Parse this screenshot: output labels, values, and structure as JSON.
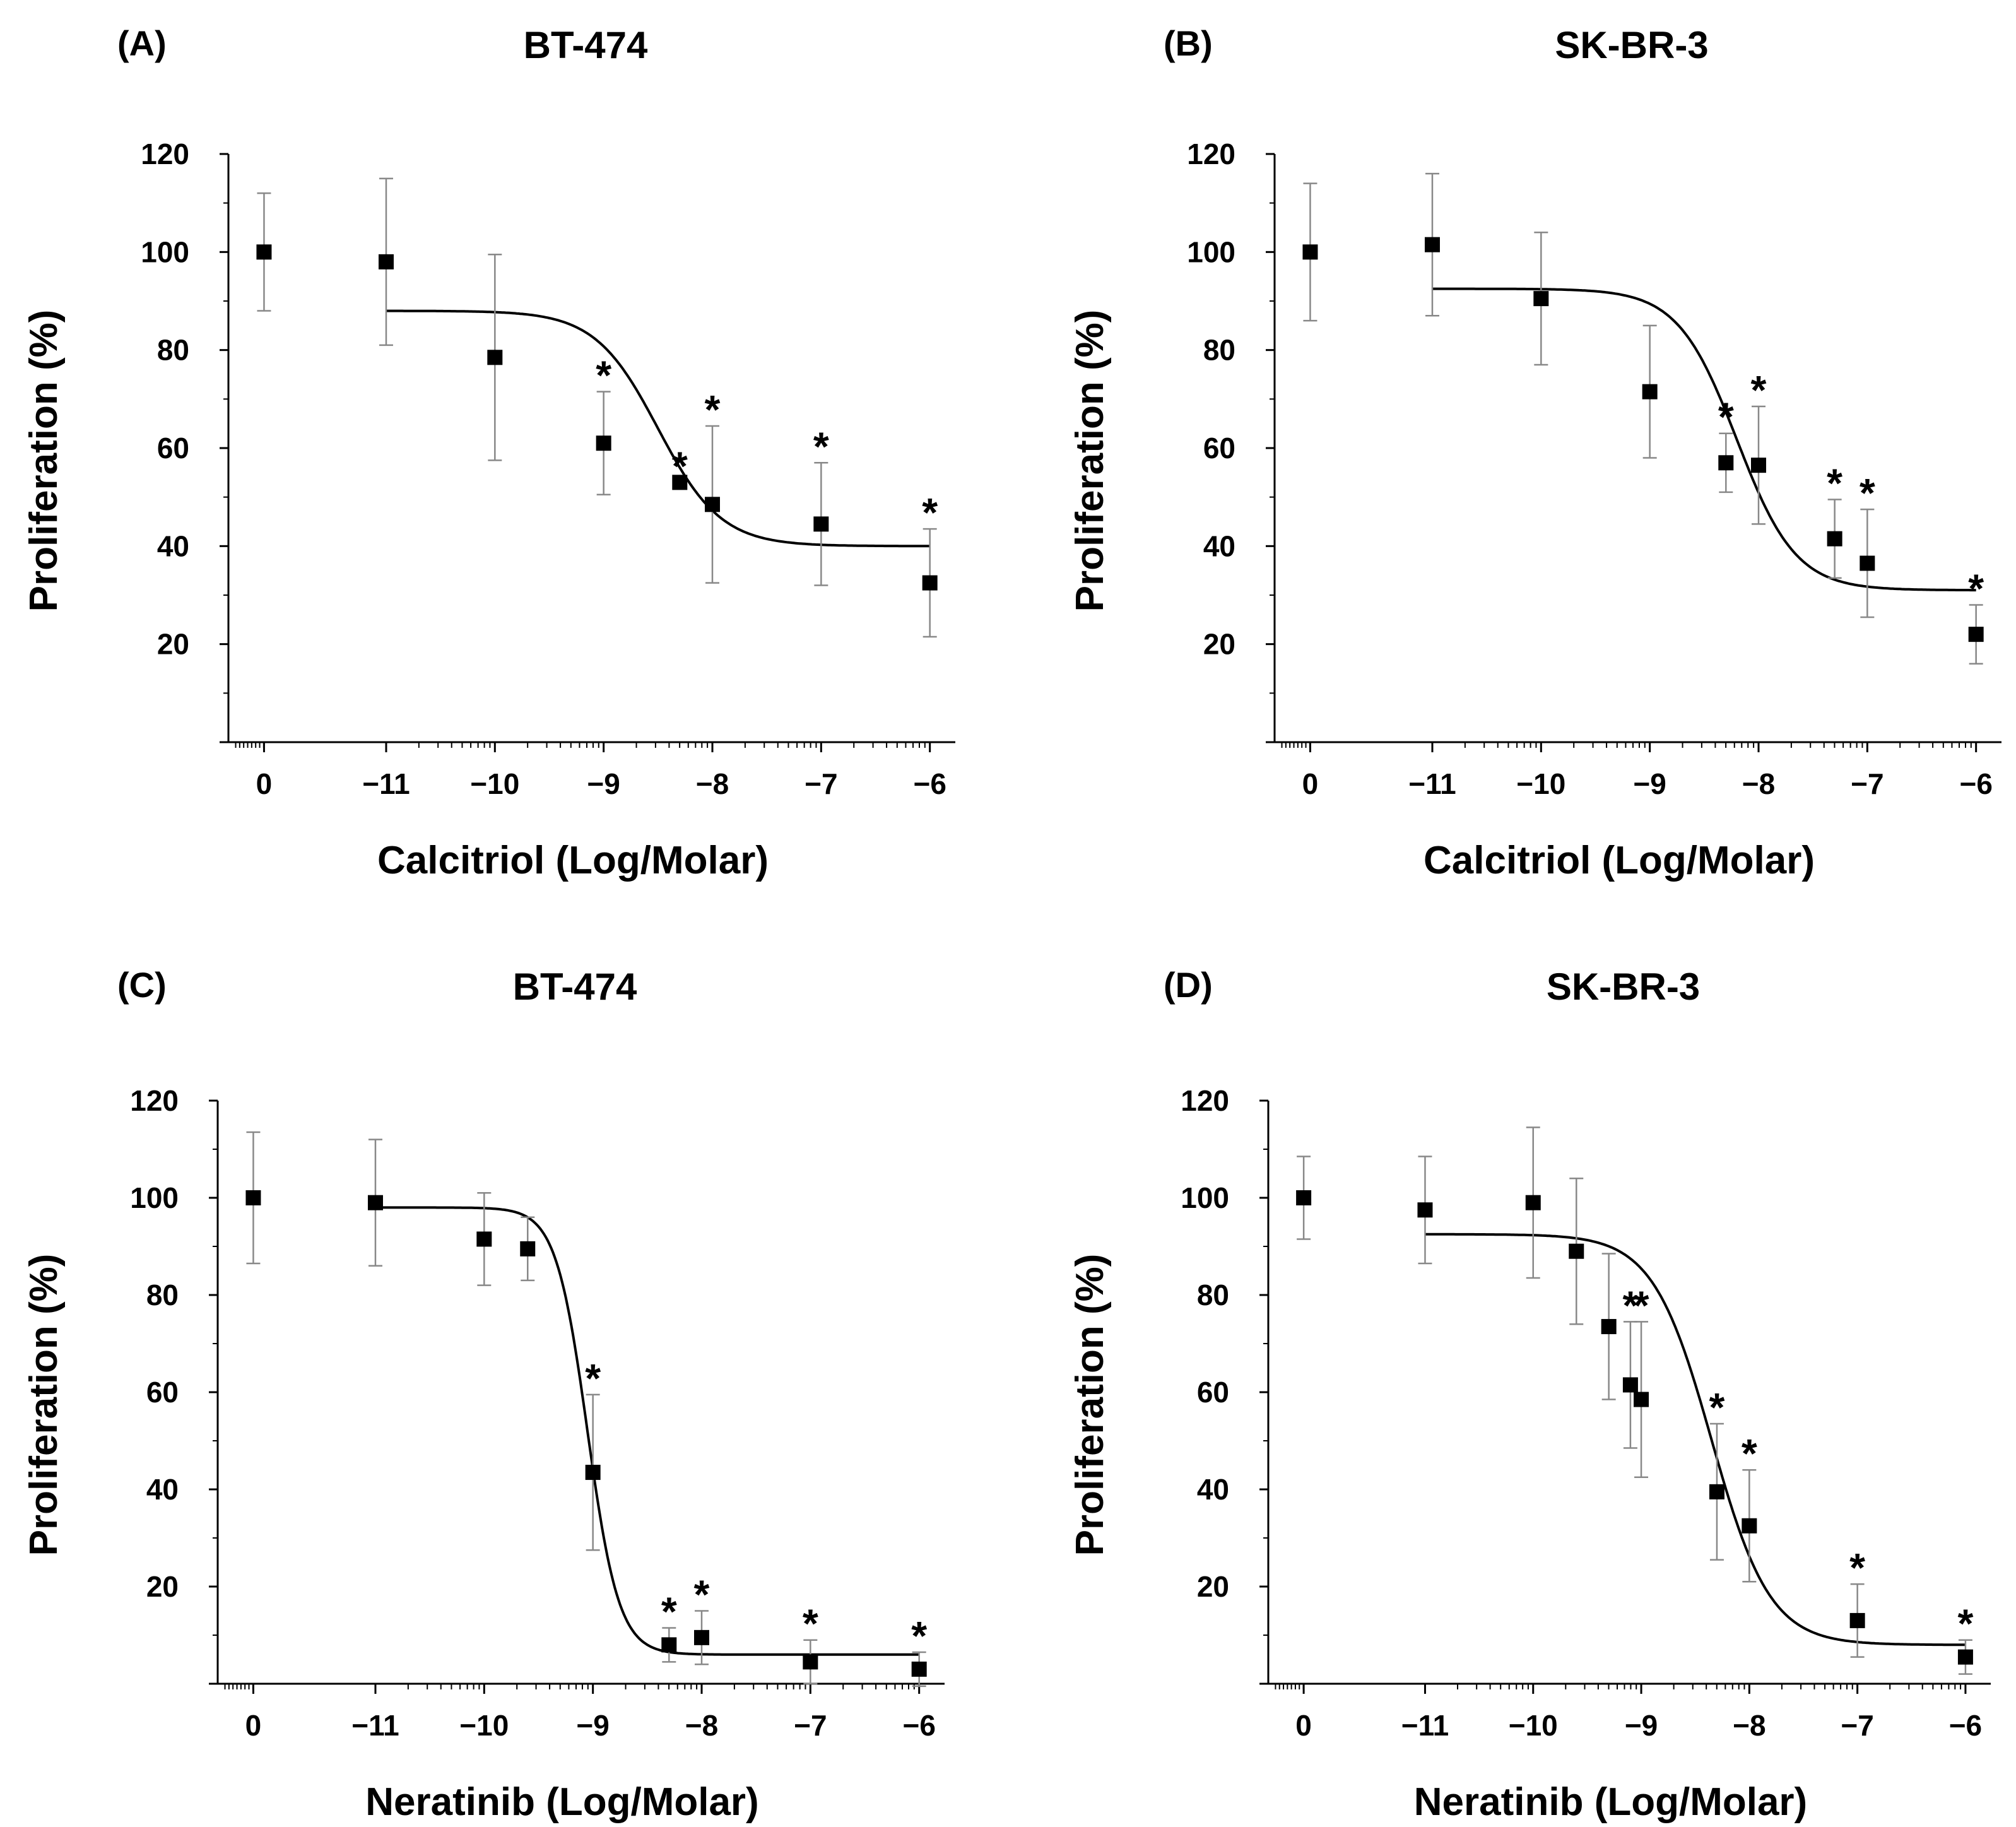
{
  "chart_data": [
    {
      "panel": "(A)",
      "type": "scatter",
      "title": "BT-474",
      "xlabel": "Calcitriol (Log/Molar)",
      "ylabel": "Proliferation (%)",
      "xticks": [
        "0",
        "−11",
        "−10",
        "−9",
        "−8",
        "−7",
        "−6"
      ],
      "yticks": [
        20,
        40,
        60,
        80,
        100,
        120
      ],
      "ylim": [
        0,
        120
      ],
      "x": [
        "0",
        "-11",
        "-10",
        "-9",
        "-8.3",
        "-8",
        "-7",
        "-6"
      ],
      "values": [
        100,
        98,
        78.5,
        61,
        53,
        48.5,
        44.5,
        32.5
      ],
      "error": [
        12,
        17,
        21,
        10.5,
        0,
        16,
        12.5,
        11
      ],
      "significant": [
        false,
        false,
        false,
        true,
        true,
        true,
        true,
        true
      ],
      "fit": {
        "top": 88,
        "bottom": 40,
        "log_ec50": -8.5,
        "hill": 1.5
      }
    },
    {
      "panel": "(B)",
      "type": "scatter",
      "title": "SK-BR-3",
      "xlabel": "Calcitriol (Log/Molar)",
      "ylabel": "Proliferation (%)",
      "xticks": [
        "0",
        "−11",
        "−10",
        "−9",
        "−8",
        "−7",
        "−6"
      ],
      "yticks": [
        20,
        40,
        60,
        80,
        100,
        120
      ],
      "ylim": [
        0,
        120
      ],
      "x": [
        "0",
        "-11",
        "-10",
        "-9",
        "-8.3",
        "-8",
        "-7.3",
        "-7",
        "-6"
      ],
      "values": [
        100,
        101.5,
        90.5,
        71.5,
        57,
        56.5,
        41.5,
        36.5,
        22
      ],
      "error": [
        14,
        14.5,
        13.5,
        13.5,
        6,
        12,
        8,
        11,
        6
      ],
      "significant": [
        false,
        false,
        false,
        false,
        true,
        true,
        true,
        true,
        true
      ],
      "fit": {
        "top": 92.5,
        "bottom": 31,
        "log_ec50": -8.2,
        "hill": 1.6
      }
    },
    {
      "panel": "(C)",
      "type": "scatter",
      "title": "BT-474",
      "xlabel": "Neratinib (Log/Molar)",
      "ylabel": "Proliferation (%)",
      "xticks": [
        "0",
        "−11",
        "−10",
        "−9",
        "−8",
        "−7",
        "−6"
      ],
      "yticks": [
        20,
        40,
        60,
        80,
        100,
        120
      ],
      "ylim": [
        0,
        120
      ],
      "x": [
        "0",
        "-11",
        "-10",
        "-9.6",
        "-9",
        "-8.3",
        "-8",
        "-7",
        "-6"
      ],
      "values": [
        100,
        99,
        91.5,
        89.5,
        43.5,
        8,
        9.5,
        4.5,
        3
      ],
      "error": [
        13.5,
        13,
        9.5,
        6.5,
        16,
        3.5,
        5.5,
        4.5,
        3.5
      ],
      "significant": [
        false,
        false,
        false,
        false,
        true,
        true,
        true,
        true,
        true
      ],
      "fit": {
        "top": 98,
        "bottom": 6,
        "log_ec50": -9.05,
        "hill": 3
      }
    },
    {
      "panel": "(D)",
      "type": "scatter",
      "title": "SK-BR-3",
      "xlabel": "Neratinib (Log/Molar)",
      "ylabel": "Proliferation (%)",
      "xticks": [
        "0",
        "−11",
        "−10",
        "−9",
        "−8",
        "−7",
        "−6"
      ],
      "yticks": [
        20,
        40,
        60,
        80,
        100,
        120
      ],
      "ylim": [
        0,
        120
      ],
      "x": [
        "0",
        "-11",
        "-10",
        "-9.6",
        "-9.3",
        "-9.1",
        "-9",
        "-8.3",
        "-8",
        "-7",
        "-6"
      ],
      "values": [
        100,
        97.5,
        99,
        89,
        73.5,
        61.5,
        58.5,
        39.5,
        32.5,
        13,
        5.5
      ],
      "error": [
        8.5,
        11,
        15.5,
        15,
        15,
        13,
        16,
        14,
        11.5,
        7.5,
        3.5
      ],
      "significant": [
        false,
        false,
        false,
        false,
        false,
        true,
        true,
        true,
        true,
        true,
        true
      ],
      "fit": {
        "top": 92.5,
        "bottom": 8,
        "log_ec50": -8.35,
        "hill": 1.6
      }
    }
  ]
}
